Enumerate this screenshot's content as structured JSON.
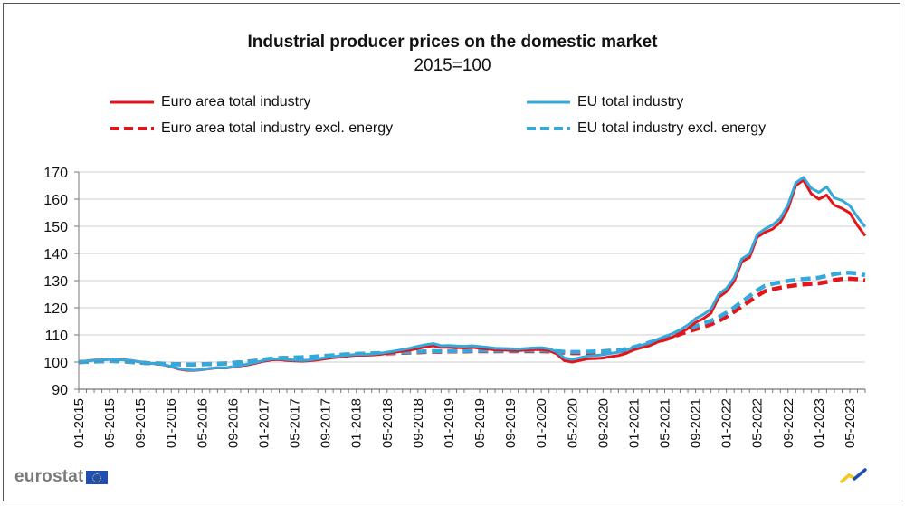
{
  "chart_data": {
    "type": "line",
    "title": "Industrial producer prices on the domestic market",
    "subtitle": "2015=100",
    "xlabel": "",
    "ylabel": "",
    "ylim": [
      90,
      170
    ],
    "yticks": [
      90,
      100,
      110,
      120,
      130,
      140,
      150,
      160,
      170
    ],
    "grid": true,
    "legend_position": "top",
    "x_start": "01-2015",
    "x_end": "05-2023",
    "x_tick_labels": [
      "01-2015",
      "05-2015",
      "09-2015",
      "01-2016",
      "05-2016",
      "09-2016",
      "01-2017",
      "05-2017",
      "09-2017",
      "01-2018",
      "05-2018",
      "09-2018",
      "01-2019",
      "05-2019",
      "09-2019",
      "01-2020",
      "05-2020",
      "09-2020",
      "01-2021",
      "05-2021",
      "09-2021",
      "01-2022",
      "05-2022",
      "09-2022",
      "01-2023",
      "05-2023"
    ],
    "series": [
      {
        "name": "Euro area total industry",
        "color": "#e3151b",
        "style": "solid",
        "values": [
          100.0,
          100.4,
          100.7,
          100.8,
          101.0,
          100.9,
          100.8,
          100.5,
          100.0,
          99.6,
          99.4,
          99.0,
          98.3,
          97.4,
          97.0,
          96.9,
          97.2,
          97.6,
          97.9,
          97.8,
          98.2,
          98.6,
          99.0,
          99.6,
          100.3,
          100.8,
          100.9,
          100.6,
          100.4,
          100.3,
          100.5,
          100.8,
          101.2,
          101.6,
          101.9,
          102.3,
          102.5,
          102.5,
          102.6,
          102.8,
          103.2,
          103.6,
          104.0,
          104.4,
          105.0,
          105.6,
          106.0,
          105.4,
          105.5,
          105.3,
          105.2,
          105.4,
          105.1,
          104.8,
          104.5,
          104.4,
          104.3,
          104.2,
          104.4,
          104.6,
          104.6,
          104.2,
          103.0,
          100.5,
          100.0,
          100.6,
          101.2,
          101.3,
          101.5,
          102.0,
          102.4,
          103.2,
          104.5,
          105.3,
          106.0,
          107.3,
          108.2,
          109.2,
          110.6,
          112.3,
          114.6,
          116.0,
          118.0,
          123.8,
          125.9,
          129.7,
          137.0,
          138.5,
          146.0,
          147.8,
          149.0,
          151.5,
          156.5,
          165.0,
          167.0,
          162.0,
          160.0,
          161.5,
          157.8,
          156.6,
          154.9,
          150.3,
          146.5
        ]
      },
      {
        "name": "EU total industry",
        "color": "#35a8dc",
        "style": "solid",
        "values": [
          100.0,
          100.4,
          100.7,
          100.8,
          101.0,
          100.9,
          100.8,
          100.5,
          100.0,
          99.6,
          99.4,
          99.1,
          98.4,
          97.6,
          97.2,
          97.0,
          97.3,
          97.7,
          98.0,
          97.9,
          98.4,
          98.8,
          99.3,
          99.9,
          100.6,
          101.1,
          101.2,
          100.9,
          100.7,
          100.6,
          100.8,
          101.2,
          101.6,
          102.0,
          102.3,
          102.6,
          102.8,
          102.8,
          102.9,
          103.2,
          103.6,
          104.1,
          104.6,
          105.1,
          105.8,
          106.4,
          106.8,
          106.0,
          106.1,
          105.9,
          105.8,
          106.0,
          105.7,
          105.4,
          105.1,
          105.0,
          104.9,
          104.8,
          105.0,
          105.2,
          105.3,
          104.9,
          103.8,
          101.5,
          101.0,
          101.6,
          102.2,
          102.4,
          102.7,
          103.2,
          103.6,
          104.4,
          105.5,
          106.2,
          107.0,
          108.3,
          109.4,
          110.5,
          111.9,
          113.6,
          116.0,
          117.5,
          119.5,
          125.0,
          127.1,
          131.0,
          138.0,
          139.8,
          147.0,
          149.0,
          150.5,
          153.0,
          158.0,
          166.0,
          168.0,
          164.0,
          162.5,
          164.5,
          160.5,
          159.5,
          157.6,
          153.4,
          149.8
        ]
      },
      {
        "name": "Euro area total industry excl. energy",
        "color": "#e3151b",
        "style": "dashed",
        "values": [
          100.0,
          100.1,
          100.2,
          100.3,
          100.4,
          100.3,
          100.2,
          100.0,
          99.8,
          99.6,
          99.5,
          99.4,
          99.3,
          99.2,
          99.1,
          99.1,
          99.2,
          99.3,
          99.4,
          99.5,
          99.7,
          99.9,
          100.2,
          100.5,
          100.9,
          101.2,
          101.4,
          101.5,
          101.6,
          101.7,
          101.8,
          102.0,
          102.2,
          102.4,
          102.6,
          102.8,
          102.9,
          103.0,
          103.1,
          103.1,
          103.2,
          103.3,
          103.4,
          103.5,
          103.6,
          103.7,
          103.8,
          103.8,
          103.9,
          103.9,
          103.9,
          104.0,
          104.0,
          104.0,
          104.0,
          104.0,
          104.0,
          104.0,
          104.0,
          104.0,
          104.0,
          103.9,
          103.7,
          103.5,
          103.3,
          103.3,
          103.4,
          103.5,
          103.6,
          103.7,
          103.9,
          104.3,
          105.0,
          105.8,
          106.6,
          107.4,
          108.3,
          109.2,
          110.3,
          111.2,
          112.1,
          113.0,
          113.9,
          115.1,
          116.7,
          118.5,
          120.5,
          122.4,
          124.4,
          126.1,
          126.8,
          127.4,
          127.9,
          128.3,
          128.6,
          128.8,
          129.0,
          129.5,
          130.2,
          130.6,
          130.7,
          130.5,
          130.1
        ]
      },
      {
        "name": "EU total industry excl. energy",
        "color": "#35a8dc",
        "style": "dashed",
        "values": [
          100.0,
          100.1,
          100.2,
          100.3,
          100.4,
          100.3,
          100.2,
          100.0,
          99.8,
          99.6,
          99.5,
          99.4,
          99.3,
          99.2,
          99.1,
          99.1,
          99.2,
          99.3,
          99.4,
          99.5,
          99.7,
          99.9,
          100.2,
          100.5,
          100.9,
          101.3,
          101.5,
          101.6,
          101.7,
          101.8,
          101.9,
          102.1,
          102.3,
          102.5,
          102.7,
          102.9,
          103.0,
          103.1,
          103.2,
          103.3,
          103.4,
          103.5,
          103.6,
          103.7,
          103.8,
          103.9,
          104.0,
          104.0,
          104.1,
          104.1,
          104.1,
          104.2,
          104.2,
          104.2,
          104.2,
          104.2,
          104.2,
          104.2,
          104.3,
          104.3,
          104.3,
          104.2,
          104.0,
          103.8,
          103.7,
          103.7,
          103.8,
          103.9,
          104.0,
          104.2,
          104.4,
          104.8,
          105.5,
          106.3,
          107.2,
          108.1,
          109.0,
          110.0,
          111.2,
          112.2,
          113.2,
          114.2,
          115.2,
          116.5,
          118.2,
          120.1,
          122.2,
          124.3,
          126.4,
          128.1,
          128.8,
          129.4,
          129.9,
          130.3,
          130.6,
          130.8,
          131.1,
          131.7,
          132.4,
          132.8,
          132.9,
          132.6,
          132.0
        ]
      }
    ]
  },
  "branding": {
    "logo_text": "eurostat"
  }
}
